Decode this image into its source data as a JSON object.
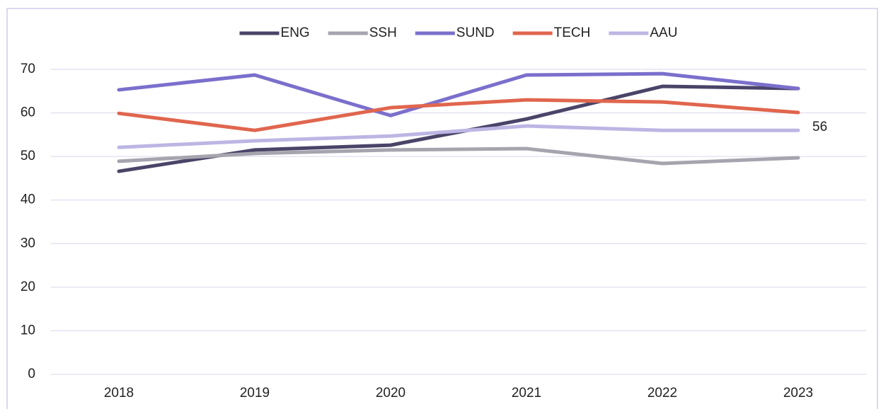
{
  "chart_data": {
    "type": "line",
    "categories": [
      "2018",
      "2019",
      "2020",
      "2021",
      "2022",
      "2023"
    ],
    "series": [
      {
        "name": "ENG",
        "color": "#4a4468",
        "values": [
          46.6,
          51.5,
          52.6,
          58.6,
          66.1,
          65.6
        ]
      },
      {
        "name": "SSH",
        "color": "#a6a4ae",
        "values": [
          48.9,
          50.7,
          51.5,
          51.8,
          48.4,
          49.7
        ]
      },
      {
        "name": "SUND",
        "color": "#7b6fcc",
        "values": [
          65.3,
          68.7,
          59.4,
          68.7,
          69.0,
          65.6
        ]
      },
      {
        "name": "TECH",
        "color": "#e0664e",
        "values": [
          59.9,
          56.0,
          61.2,
          63.0,
          62.5,
          60.1
        ]
      },
      {
        "name": "AAU",
        "color": "#bcb6e4",
        "values": [
          52.1,
          53.6,
          54.7,
          57.0,
          56.0,
          56.0
        ],
        "value_labels": [
          null,
          null,
          null,
          null,
          null,
          "56"
        ]
      }
    ],
    "ylim": [
      0,
      70
    ],
    "yticks": [
      0,
      10,
      20,
      30,
      40,
      50,
      60,
      70
    ],
    "grid": true,
    "legend": "top"
  }
}
